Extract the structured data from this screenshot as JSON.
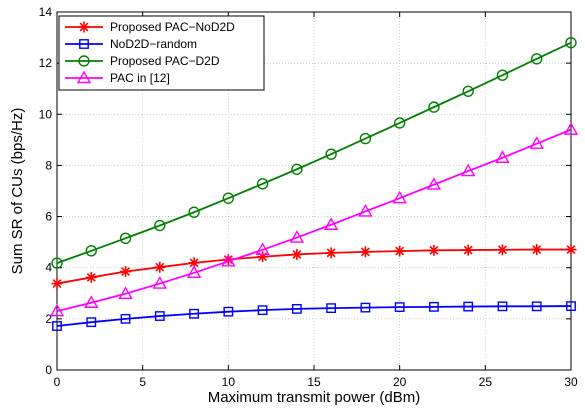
{
  "chart_data": {
    "type": "line",
    "title": "",
    "xlabel": "Maximum transmit power (dBm)",
    "ylabel": "Sum SR of CUs (bps/Hz)",
    "xlim": [
      0,
      30
    ],
    "ylim": [
      0,
      14
    ],
    "xticks": [
      0,
      5,
      10,
      15,
      20,
      25,
      30
    ],
    "yticks": [
      0,
      2,
      4,
      6,
      8,
      10,
      12,
      14
    ],
    "grid": true,
    "legend_position": "top-left",
    "x": [
      0,
      2,
      4,
      6,
      8,
      10,
      12,
      14,
      16,
      18,
      20,
      22,
      24,
      26,
      28,
      30
    ],
    "series": [
      {
        "name": "Proposed PAC−NoD2D",
        "color": "#ff0000",
        "marker": "asterisk",
        "values": [
          3.38,
          3.62,
          3.85,
          4.02,
          4.19,
          4.32,
          4.43,
          4.52,
          4.58,
          4.62,
          4.65,
          4.68,
          4.69,
          4.7,
          4.71,
          4.71
        ]
      },
      {
        "name": "NoD2D−random",
        "color": "#0000ff",
        "marker": "square",
        "values": [
          1.72,
          1.87,
          2.0,
          2.11,
          2.2,
          2.28,
          2.34,
          2.39,
          2.42,
          2.44,
          2.46,
          2.47,
          2.48,
          2.49,
          2.49,
          2.5
        ]
      },
      {
        "name": "Proposed PAC−D2D",
        "color": "#008000",
        "marker": "circle",
        "values": [
          4.18,
          4.66,
          5.15,
          5.65,
          6.17,
          6.72,
          7.28,
          7.85,
          8.44,
          9.05,
          9.66,
          10.28,
          10.9,
          11.53,
          12.17,
          12.8
        ]
      },
      {
        "name": "PAC in [12]",
        "color": "#ff00ff",
        "marker": "triangle",
        "values": [
          2.3,
          2.63,
          2.98,
          3.38,
          3.8,
          4.25,
          4.7,
          5.18,
          5.68,
          6.2,
          6.72,
          7.25,
          7.78,
          8.3,
          8.85,
          9.4
        ]
      }
    ]
  }
}
